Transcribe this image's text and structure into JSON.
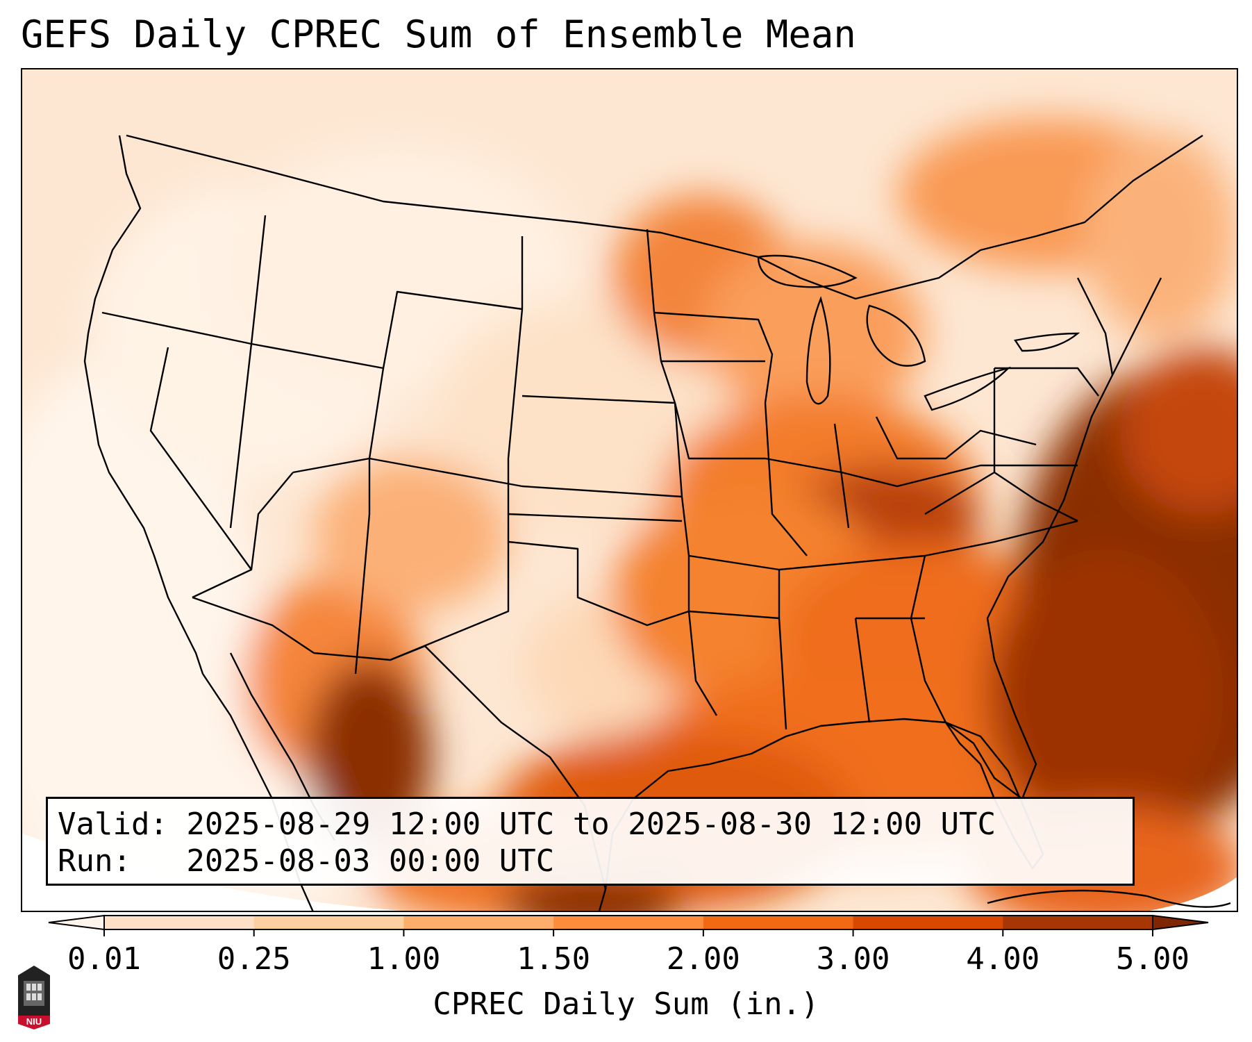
{
  "title": "GEFS Daily CPREC Sum of Ensemble Mean",
  "info": {
    "valid_line": "Valid: 2025-08-29 12:00 UTC to 2025-08-30 12:00 UTC",
    "run_line": "Run:   2025-08-03 00:00 UTC"
  },
  "colorbar": {
    "label": "CPREC Daily Sum (in.)",
    "ticks": [
      "0.01",
      "0.25",
      "1.00",
      "1.50",
      "2.00",
      "3.00",
      "4.00",
      "5.00"
    ],
    "colors": [
      "#fde0c5",
      "#fdd0a2",
      "#fdae6b",
      "#fd8d3c",
      "#f16913",
      "#d94801",
      "#a63603"
    ],
    "under_color": "#fff5eb",
    "over_color": "#7f2704"
  },
  "map": {
    "region": "Contiguous United States",
    "features": [
      "state-borders",
      "coastlines",
      "great-lakes",
      "precipitation-shading"
    ]
  },
  "logo": {
    "name": "niu-logo-icon",
    "text": "NIU"
  }
}
